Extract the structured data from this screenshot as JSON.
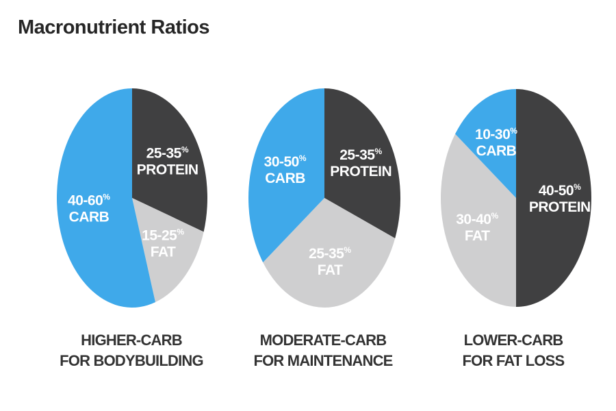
{
  "title": "Macronutrient Ratios",
  "colors": {
    "carb": "#3fa9ea",
    "protein": "#404041",
    "fat": "#cfcfd0",
    "label": "#ffffff"
  },
  "chart_data": [
    {
      "type": "pie",
      "title": "",
      "caption": [
        "HIGHER-CARB",
        "FOR BODYBUILDING"
      ],
      "slices": [
        {
          "key": "protein",
          "name": "PROTEIN",
          "range": "25-35",
          "unit": "%",
          "value": 0.3
        },
        {
          "key": "fat",
          "name": "FAT",
          "range": "15-25",
          "unit": "%",
          "value": 0.15
        },
        {
          "key": "carb",
          "name": "CARB",
          "range": "40-60",
          "unit": "%",
          "value": 0.55
        }
      ]
    },
    {
      "type": "pie",
      "title": "",
      "caption": [
        "MODERATE-CARB",
        "FOR MAINTENANCE"
      ],
      "slices": [
        {
          "key": "protein",
          "name": "PROTEIN",
          "range": "25-35",
          "unit": "%",
          "value": 0.31
        },
        {
          "key": "fat",
          "name": "FAT",
          "range": "25-35",
          "unit": "%",
          "value": 0.34
        },
        {
          "key": "carb",
          "name": "CARB",
          "range": "30-50",
          "unit": "%",
          "value": 0.35
        }
      ]
    },
    {
      "type": "pie",
      "title": "",
      "caption": [
        "LOWER-CARB",
        "FOR FAT LOSS"
      ],
      "slices": [
        {
          "key": "protein",
          "name": "PROTEIN",
          "range": "40-50",
          "unit": "%",
          "value": 0.5
        },
        {
          "key": "fat",
          "name": "FAT",
          "range": "30-40",
          "unit": "%",
          "value": 0.35
        },
        {
          "key": "carb",
          "name": "CARB",
          "range": "10-30",
          "unit": "%",
          "value": 0.15
        }
      ]
    }
  ]
}
